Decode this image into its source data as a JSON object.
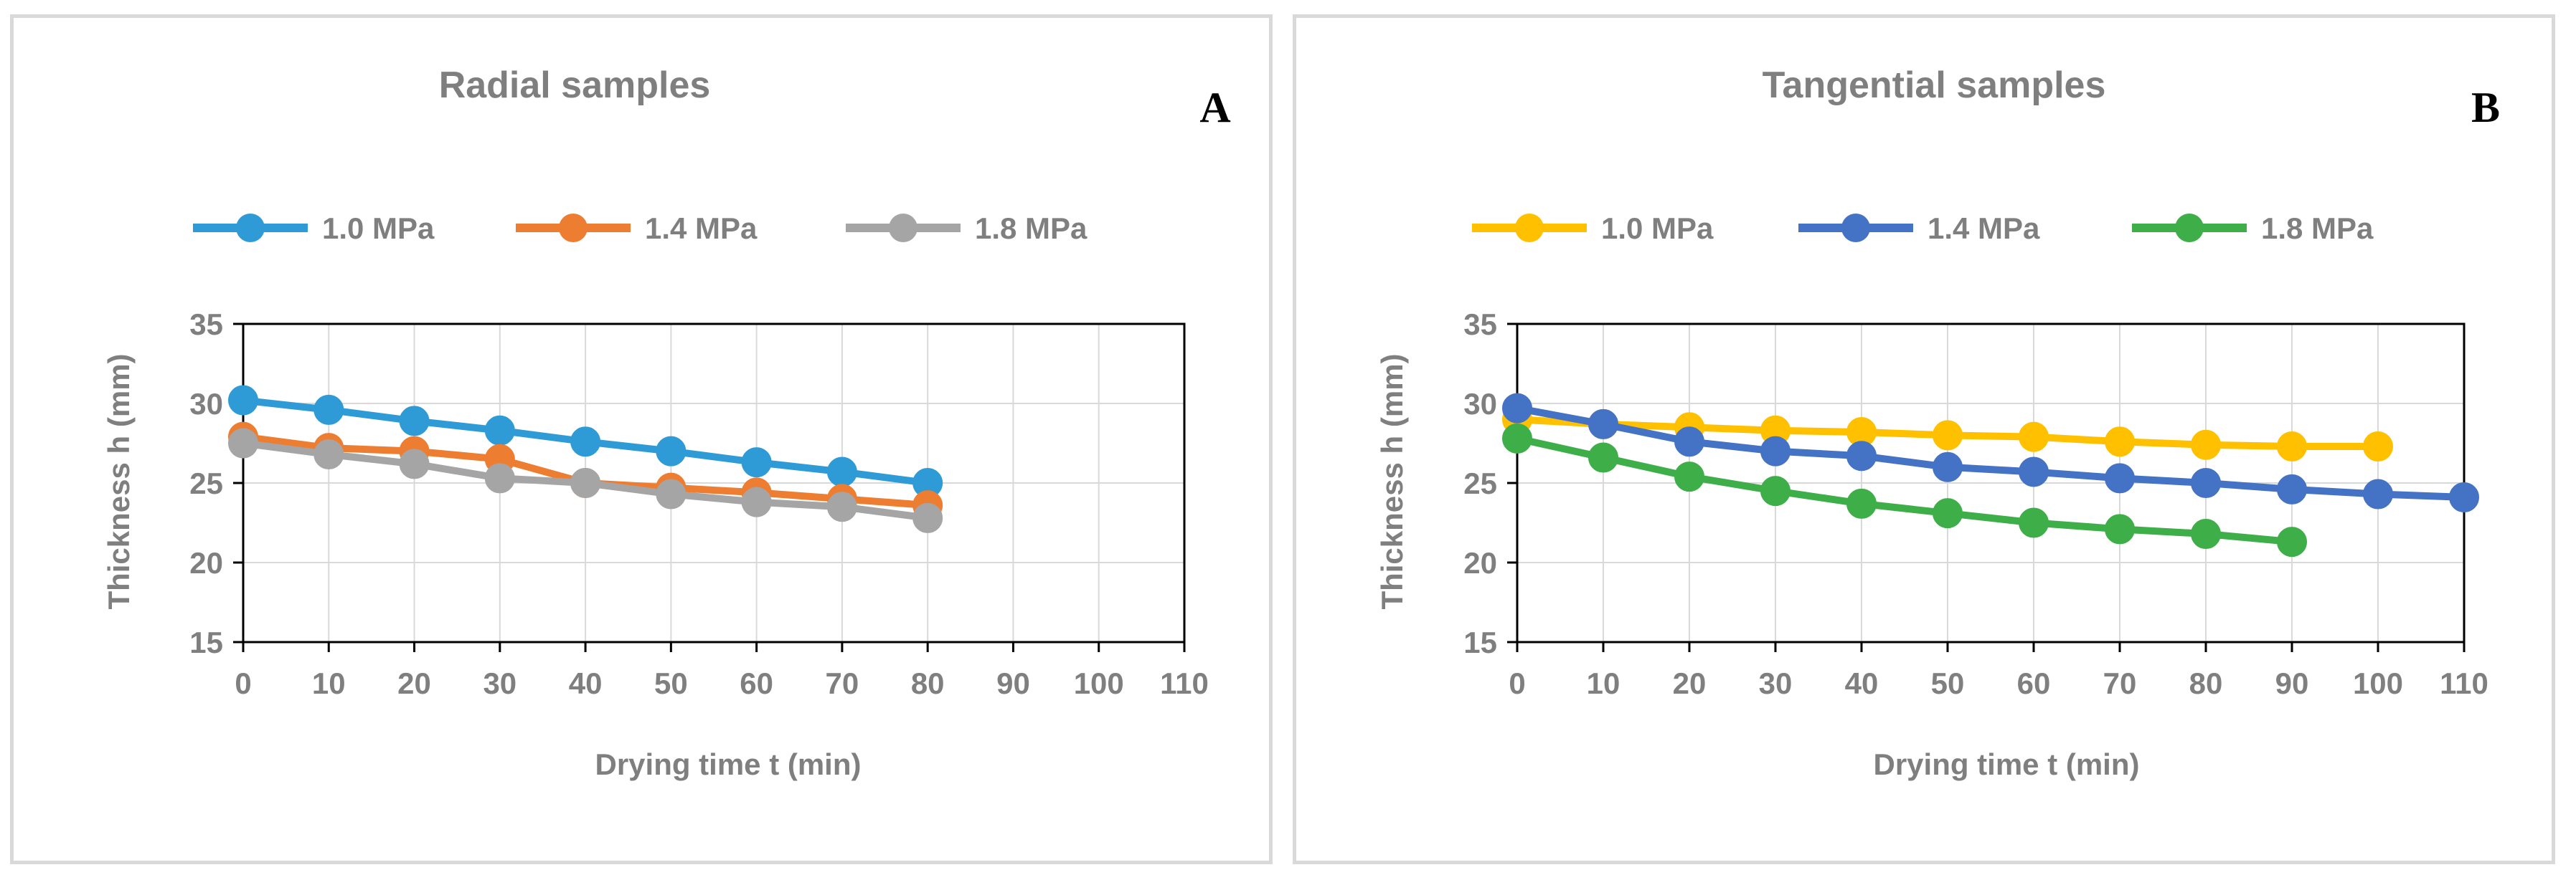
{
  "chart_data": [
    {
      "type": "line",
      "title": "Radial samples",
      "panel_label": "A",
      "xlabel": "Drying time t (min)",
      "ylabel": "Thickness h (mm)",
      "xlim": [
        0,
        110
      ],
      "ylim": [
        15,
        35
      ],
      "xticks": [
        0,
        10,
        20,
        30,
        40,
        50,
        60,
        70,
        80,
        90,
        100,
        110
      ],
      "yticks": [
        15,
        20,
        25,
        30,
        35
      ],
      "grid": true,
      "legend_position": "top",
      "series": [
        {
          "name": "1.0 MPa",
          "color": "#2e9bd6",
          "x": [
            0,
            10,
            20,
            30,
            40,
            50,
            60,
            70,
            80
          ],
          "y": [
            30.2,
            29.6,
            28.9,
            28.3,
            27.6,
            27.0,
            26.3,
            25.7,
            25.0
          ]
        },
        {
          "name": "1.4 MPa",
          "color": "#ed7d31",
          "x": [
            0,
            10,
            20,
            30,
            40,
            50,
            60,
            70,
            80
          ],
          "y": [
            27.9,
            27.2,
            27.0,
            26.5,
            25.0,
            24.7,
            24.4,
            24.0,
            23.6
          ]
        },
        {
          "name": "1.8 MPa",
          "color": "#a5a5a5",
          "x": [
            0,
            10,
            20,
            30,
            40,
            50,
            60,
            70,
            80
          ],
          "y": [
            27.5,
            26.8,
            26.2,
            25.3,
            25.0,
            24.3,
            23.8,
            23.5,
            22.8
          ]
        }
      ]
    },
    {
      "type": "line",
      "title": "Tangential samples",
      "panel_label": "B",
      "xlabel": "Drying time t (min)",
      "ylabel": "Thickness h (mm)",
      "xlim": [
        0,
        110
      ],
      "ylim": [
        15,
        35
      ],
      "xticks": [
        0,
        10,
        20,
        30,
        40,
        50,
        60,
        70,
        80,
        90,
        100,
        110
      ],
      "yticks": [
        15,
        20,
        25,
        30,
        35
      ],
      "grid": true,
      "legend_position": "top",
      "series": [
        {
          "name": "1.0 MPa",
          "color": "#ffc000",
          "x": [
            0,
            10,
            20,
            30,
            40,
            50,
            60,
            70,
            80,
            90,
            100
          ],
          "y": [
            29.0,
            28.7,
            28.5,
            28.3,
            28.2,
            28.0,
            27.9,
            27.6,
            27.4,
            27.3,
            27.3
          ]
        },
        {
          "name": "1.4 MPa",
          "color": "#4472c4",
          "x": [
            0,
            10,
            20,
            30,
            40,
            50,
            60,
            70,
            80,
            90,
            100,
            110
          ],
          "y": [
            29.7,
            28.7,
            27.6,
            27.0,
            26.7,
            26.0,
            25.7,
            25.3,
            25.0,
            24.6,
            24.3,
            24.1
          ]
        },
        {
          "name": "1.8 MPa",
          "color": "#3eae49",
          "x": [
            0,
            10,
            20,
            30,
            40,
            50,
            60,
            70,
            80,
            90
          ],
          "y": [
            27.8,
            26.6,
            25.4,
            24.5,
            23.7,
            23.1,
            22.5,
            22.1,
            21.8,
            21.3
          ]
        }
      ]
    }
  ]
}
